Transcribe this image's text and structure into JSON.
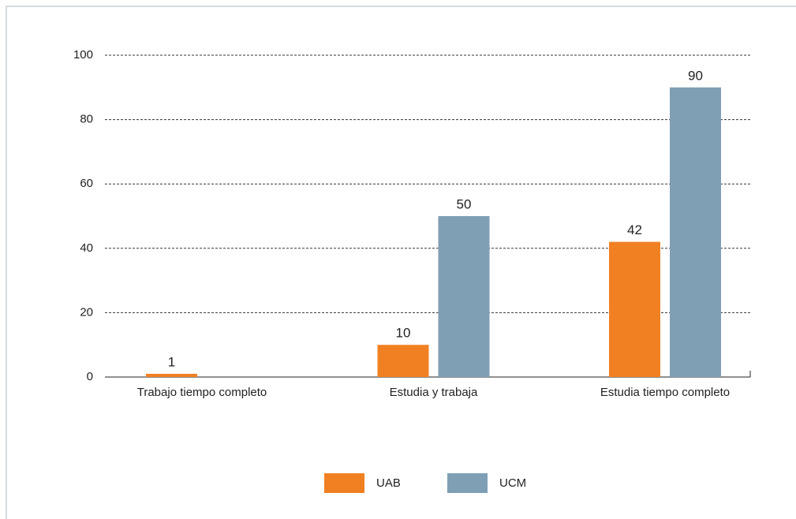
{
  "chart_data": {
    "type": "bar",
    "categories": [
      "Trabajo tiempo completo",
      "Estudia y trabaja",
      "Estudia tiempo completo"
    ],
    "series": [
      {
        "name": "UAB",
        "color": "#f18022",
        "values": [
          1,
          10,
          42
        ]
      },
      {
        "name": "UCM",
        "color": "#7f9fb5",
        "values": [
          null,
          50,
          90
        ]
      }
    ],
    "ylim": [
      0,
      100
    ],
    "yticks": [
      0,
      20,
      40,
      60,
      80,
      100
    ],
    "grid": true,
    "legend": "bottom"
  }
}
